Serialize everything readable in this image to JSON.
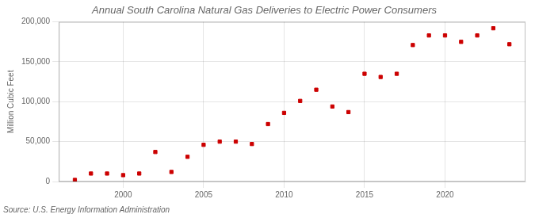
{
  "chart_data": {
    "type": "scatter",
    "title": "Annual South Carolina Natural Gas Deliveries to Electric Power Consumers",
    "ylabel": "Million Cubic Feet",
    "source": "Source: U.S. Energy Information Administration",
    "x": [
      1997,
      1998,
      1999,
      2000,
      2001,
      2002,
      2003,
      2004,
      2005,
      2006,
      2007,
      2008,
      2009,
      2010,
      2011,
      2012,
      2013,
      2014,
      2015,
      2016,
      2017,
      2018,
      2019,
      2020,
      2021,
      2022,
      2023,
      2024
    ],
    "values": [
      2000,
      10000,
      10000,
      8000,
      10000,
      37000,
      12000,
      31000,
      46000,
      50000,
      50000,
      47000,
      72000,
      86000,
      101000,
      115000,
      94000,
      87000,
      135000,
      131000,
      135000,
      171000,
      183000,
      183000,
      175000,
      183000,
      192000,
      172000
    ],
    "color": "#cc0000",
    "marker": "square",
    "xlim": [
      1996,
      2025
    ],
    "xticks": [
      2000,
      2005,
      2010,
      2015,
      2020
    ],
    "ylim": [
      0,
      200000
    ],
    "yticks": [
      0,
      {
        "value": 50000,
        "label": "50,000"
      },
      {
        "value": 100000,
        "label": "100,000"
      },
      {
        "value": 150000,
        "label": "150,000"
      },
      {
        "value": 200000,
        "label": "200,000"
      }
    ],
    "grid": true
  }
}
